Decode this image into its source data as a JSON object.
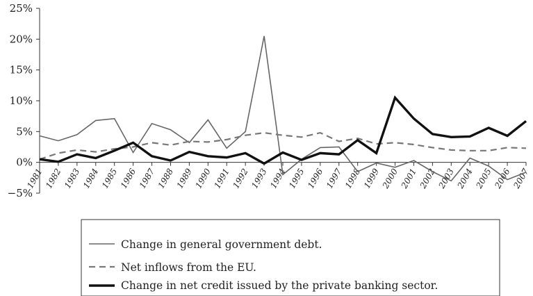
{
  "chart_data": {
    "type": "line",
    "x": [
      "1981",
      "1982",
      "1983",
      "1984",
      "1985",
      "1986",
      "1987",
      "1988",
      "1989",
      "1990",
      "1991",
      "1992",
      "1993",
      "1994",
      "1995",
      "1996",
      "1997",
      "1998",
      "1999",
      "2000",
      "2001",
      "2002",
      "2003",
      "2004",
      "2005",
      "2006",
      "2007"
    ],
    "y_ticks": [
      "25%",
      "20%",
      "15%",
      "10%",
      "5%",
      "0%",
      "−5%"
    ],
    "ylim": [
      -5,
      25
    ],
    "grid": false,
    "legend_position": "bottom",
    "series": [
      {
        "name": "Change in general government debt.",
        "style": "thin-solid",
        "color": "#666666",
        "values": [
          4.3,
          3.5,
          4.5,
          6.8,
          7.1,
          1.6,
          6.3,
          5.3,
          3.2,
          6.9,
          2.3,
          5.0,
          20.5,
          -2.0,
          0.5,
          2.4,
          2.5,
          -1.5,
          -0.1,
          -0.8,
          0.3,
          -1.5,
          -3.0,
          0.7,
          -0.6,
          -2.8,
          -1.6
        ]
      },
      {
        "name": "Net inflows from the EU.",
        "style": "dashed",
        "color": "#777777",
        "values": [
          0.5,
          1.5,
          2.0,
          1.7,
          2.2,
          2.5,
          3.2,
          2.8,
          3.4,
          3.3,
          3.7,
          4.4,
          4.8,
          4.4,
          4.1,
          4.8,
          3.4,
          3.9,
          3.0,
          3.2,
          2.9,
          2.4,
          2.0,
          1.9,
          1.9,
          2.4,
          2.3
        ]
      },
      {
        "name": "Change in net credit issued by the private banking sector.",
        "style": "thick-solid",
        "color": "#111111",
        "values": [
          0.5,
          0.1,
          1.3,
          0.7,
          1.9,
          3.2,
          1.0,
          0.3,
          1.7,
          1.0,
          0.8,
          1.5,
          -0.2,
          1.6,
          0.4,
          1.5,
          1.3,
          3.6,
          1.5,
          10.5,
          7.1,
          4.6,
          4.1,
          4.2,
          5.6,
          4.3,
          6.7
        ]
      }
    ]
  }
}
